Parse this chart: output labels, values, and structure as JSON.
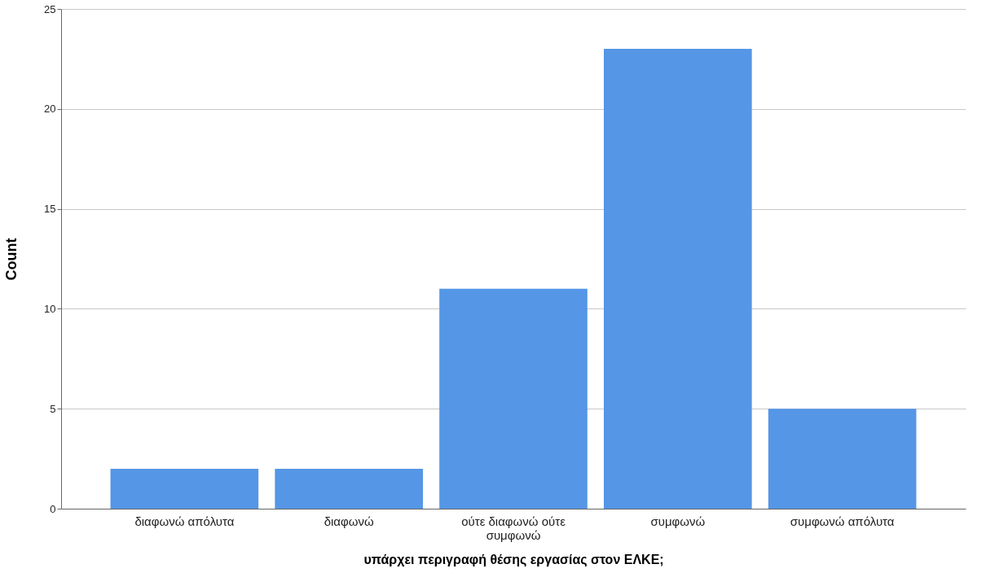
{
  "chart_data": {
    "type": "bar",
    "xlabel": "υπάρχει περιγραφή θέσης εργασίας στον ΕΛΚΕ;",
    "ylabel": "Count",
    "categories": [
      "διαφωνώ απόλυτα",
      "διαφωνώ",
      "ούτε διαφωνώ ούτε συμφωνώ",
      "συμφωνώ",
      "συμφωνώ απόλυτα"
    ],
    "values": [
      2,
      2,
      11,
      23,
      5
    ],
    "color": "#5596e6",
    "ylim": [
      0,
      25
    ],
    "yticks": [
      0,
      5,
      10,
      15,
      20,
      25
    ],
    "grid": "y"
  }
}
